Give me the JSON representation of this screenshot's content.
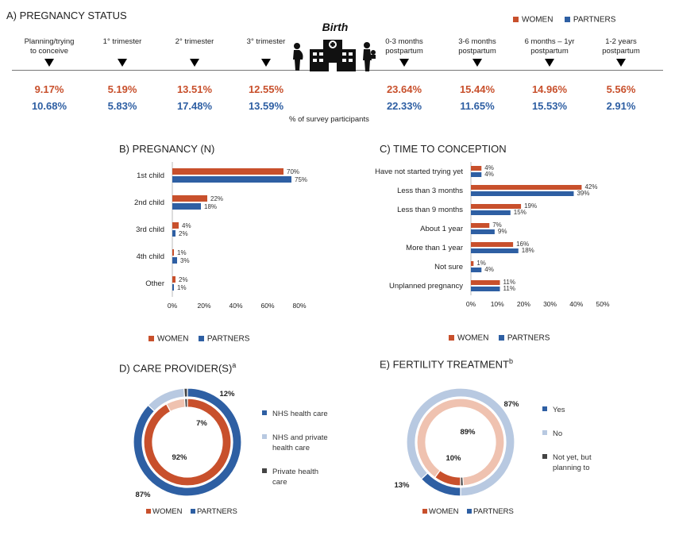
{
  "colors": {
    "women": "#C8502C",
    "partners": "#2E5FA3",
    "light_women": "#EFC2B0",
    "light_partners": "#B8C9E1",
    "dark": "#444444"
  },
  "panelA": {
    "title": "A) PREGNANCY STATUS",
    "legend": {
      "women": "WOMEN",
      "partners": "PARTNERS"
    },
    "birth_label": "Birth",
    "caption": "% of survey participants",
    "stages": [
      {
        "label": [
          "Planning/trying",
          "to conceive"
        ],
        "women": "9.17%",
        "partners": "10.68%"
      },
      {
        "label": [
          "1° trimester"
        ],
        "women": "5.19%",
        "partners": "5.83%"
      },
      {
        "label": [
          "2° trimester"
        ],
        "women": "13.51%",
        "partners": "17.48%"
      },
      {
        "label": [
          "3° trimester"
        ],
        "women": "12.55%",
        "partners": "13.59%"
      },
      {
        "label": [
          "0-3 months",
          "postpartum"
        ],
        "women": "23.64%",
        "partners": "22.33%"
      },
      {
        "label": [
          "3-6 months",
          "postpartum"
        ],
        "women": "15.44%",
        "partners": "11.65%"
      },
      {
        "label": [
          "6 months – 1yr",
          "postpartum"
        ],
        "women": "14.96%",
        "partners": "15.53%"
      },
      {
        "label": [
          "1-2 years",
          "postpartum"
        ],
        "women": "5.56%",
        "partners": "2.91%"
      }
    ]
  },
  "chart_data": [
    {
      "type": "bar",
      "orientation": "horizontal",
      "title": "B) PREGNANCY (N)",
      "categories": [
        "1st child",
        "2nd child",
        "3rd child",
        "4th child",
        "Other"
      ],
      "series": [
        {
          "name": "WOMEN",
          "values": [
            70,
            22,
            4,
            1,
            2
          ],
          "labels": [
            "70%",
            "22%",
            "4%",
            "1%",
            "2%"
          ]
        },
        {
          "name": "PARTNERS",
          "values": [
            75,
            18,
            2,
            3,
            1
          ],
          "labels": [
            "75%",
            "18%",
            "2%",
            "3%",
            "1%"
          ]
        }
      ],
      "xlim": [
        0,
        80
      ],
      "xticks": [
        "0%",
        "20%",
        "40%",
        "60%",
        "80%"
      ],
      "legend": "bottom"
    },
    {
      "type": "bar",
      "orientation": "horizontal",
      "title": "C) TIME TO CONCEPTION",
      "categories": [
        "Have not started trying yet",
        "Less than 3 months",
        "Less than 9 months",
        "About 1 year",
        "More than 1 year",
        "Not sure",
        "Unplanned pregnancy"
      ],
      "series": [
        {
          "name": "WOMEN",
          "values": [
            4,
            42,
            19,
            7,
            16,
            1,
            11
          ],
          "labels": [
            "4%",
            "42%",
            "19%",
            "7%",
            "16%",
            "1%",
            "11%"
          ]
        },
        {
          "name": "PARTNERS",
          "values": [
            4,
            39,
            15,
            9,
            18,
            4,
            11
          ],
          "labels": [
            "4%",
            "39%",
            "15%",
            "9%",
            "18%",
            "4%",
            "11%"
          ]
        }
      ],
      "xlim": [
        0,
        50
      ],
      "xticks": [
        "0%",
        "10%",
        "20%",
        "30%",
        "40%",
        "50%"
      ],
      "legend": "bottom"
    },
    {
      "type": "pie",
      "variant": "nested-donut",
      "title": "D) CARE PROVIDER(S)",
      "title_sup": "a",
      "categories": [
        "NHS health care",
        "NHS and private health care",
        "Private health care"
      ],
      "legend_lines": [
        [
          "NHS health care"
        ],
        [
          "NHS and private",
          "health care"
        ],
        [
          "Private health",
          "care"
        ]
      ],
      "series": [
        {
          "name": "WOMEN",
          "ring": "inner",
          "values": [
            92,
            7,
            1
          ]
        },
        {
          "name": "PARTNERS",
          "ring": "outer",
          "values": [
            87,
            12,
            1
          ]
        }
      ],
      "labels": {
        "outer_main": "87%",
        "outer_second": "12%",
        "inner_main": "92%",
        "inner_second": "7%"
      },
      "series_legend": {
        "women": "WOMEN",
        "partners": "PARTNERS"
      }
    },
    {
      "type": "pie",
      "variant": "nested-donut",
      "title": "E) FERTILITY TREATMENT",
      "title_sup": "b",
      "categories": [
        "Yes",
        "No",
        "Not yet, but planning to"
      ],
      "legend_lines": [
        [
          "Yes"
        ],
        [
          "No"
        ],
        [
          "Not yet, but",
          "planning to"
        ]
      ],
      "series": [
        {
          "name": "WOMEN",
          "ring": "inner",
          "values": [
            10,
            89,
            1
          ]
        },
        {
          "name": "PARTNERS",
          "ring": "outer",
          "values": [
            13,
            87,
            0
          ]
        }
      ],
      "labels": {
        "outer_main": "87%",
        "outer_second": "13%",
        "inner_main": "89%",
        "inner_second": "10%"
      },
      "series_legend": {
        "women": "WOMEN",
        "partners": "PARTNERS"
      }
    }
  ]
}
